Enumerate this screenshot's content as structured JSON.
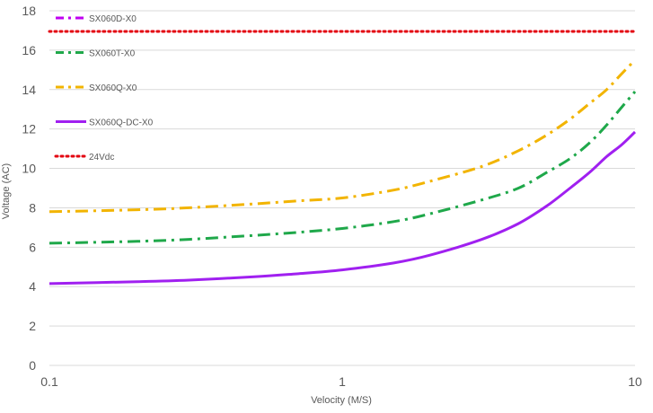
{
  "chart_data": {
    "type": "line",
    "xlabel": "Velocity (M/S)",
    "ylabel": "Voltage (AC)",
    "x_scale": "log",
    "xlim": [
      0.1,
      10
    ],
    "ylim": [
      0,
      18
    ],
    "x_ticks": [
      "0.1",
      "1",
      "10"
    ],
    "x_tick_values": [
      0.1,
      1,
      10
    ],
    "y_ticks": [
      "0",
      "2",
      "4",
      "6",
      "8",
      "10",
      "12",
      "14",
      "16",
      "18"
    ],
    "y_tick_values": [
      0,
      2,
      4,
      6,
      8,
      10,
      12,
      14,
      16,
      18
    ],
    "grid": "horizontal",
    "legend_placement": "top-left",
    "series": [
      {
        "name": "SX060D-X0",
        "color": "#c000f0",
        "style": "dash-dot",
        "x": [],
        "values": []
      },
      {
        "name": "SX060T-X0",
        "color": "#1fa84a",
        "style": "dash-dot",
        "x": [
          0.1,
          0.2,
          0.3,
          0.5,
          0.7,
          1,
          1.5,
          2,
          3,
          4,
          5,
          6,
          7,
          8,
          9,
          10
        ],
        "values": [
          6.2,
          6.3,
          6.4,
          6.6,
          6.75,
          6.95,
          7.3,
          7.7,
          8.4,
          9.0,
          9.8,
          10.5,
          11.3,
          12.2,
          13.1,
          13.9
        ]
      },
      {
        "name": "SX060Q-X0",
        "color": "#f2b400",
        "style": "dash-dot",
        "x": [
          0.1,
          0.2,
          0.3,
          0.5,
          0.7,
          1,
          1.5,
          2,
          3,
          4,
          5,
          6,
          7,
          8,
          9,
          10
        ],
        "values": [
          7.8,
          7.9,
          8.0,
          8.2,
          8.35,
          8.5,
          8.9,
          9.35,
          10.1,
          10.9,
          11.7,
          12.5,
          13.3,
          14.0,
          14.8,
          15.5
        ]
      },
      {
        "name": "SX060Q-DC-X0",
        "color": "#a020f0",
        "style": "solid",
        "x": [
          0.1,
          0.2,
          0.3,
          0.5,
          0.7,
          1,
          1.5,
          2,
          3,
          4,
          5,
          6,
          7,
          8,
          9,
          10
        ],
        "values": [
          4.15,
          4.25,
          4.33,
          4.5,
          4.65,
          4.85,
          5.2,
          5.6,
          6.4,
          7.2,
          8.1,
          9.0,
          9.8,
          10.6,
          11.2,
          11.85
        ]
      },
      {
        "name": "24Vdc",
        "color": "#e3000f",
        "style": "dotted",
        "x": [
          0.1,
          10
        ],
        "values": [
          16.95,
          16.95
        ]
      }
    ]
  }
}
